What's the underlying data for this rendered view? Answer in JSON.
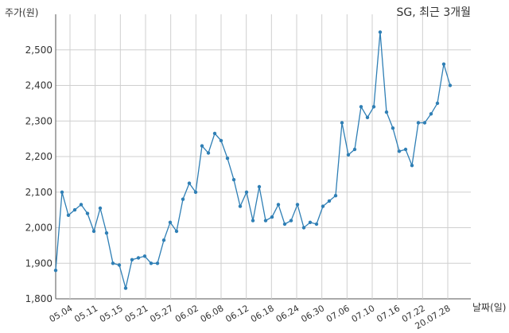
{
  "chart_data": {
    "type": "line",
    "title": "SG, 최근 3개월",
    "ylabel": "주가(원)",
    "xlabel": "날짜(일)",
    "ylim": [
      1800,
      2600
    ],
    "yticks": [
      1800,
      1900,
      2000,
      2100,
      2200,
      2300,
      2400,
      2500
    ],
    "ytick_labels": [
      "1,800",
      "1,900",
      "2,000",
      "2,100",
      "2,200",
      "2,300",
      "2,400",
      "2,500"
    ],
    "xtick_labels": [
      "05.04",
      "05.11",
      "05.15",
      "05.21",
      "05.27",
      "06.02",
      "06.08",
      "06.12",
      "06.18",
      "06.24",
      "06.30",
      "07.06",
      "07.10",
      "07.16",
      "07.22",
      "20.07.28"
    ],
    "grid": true,
    "line_color": "#2f7fb5",
    "series": [
      {
        "values": [
          1880,
          2100,
          2035,
          2050,
          2065,
          2040,
          1990,
          2055,
          1985,
          1900,
          1895,
          1830,
          1910,
          1915,
          1920,
          1900,
          1900,
          1965,
          2015,
          1990,
          2080,
          2125,
          2100,
          2230,
          2210,
          2265,
          2245,
          2195,
          2135,
          2060,
          2100,
          2020,
          2115,
          2020,
          2030,
          2065,
          2010,
          2020,
          2065,
          2000,
          2015,
          2010,
          2060,
          2075,
          2090,
          2295,
          2205,
          2220,
          2340,
          2310,
          2340,
          2550,
          2325,
          2280,
          2215,
          2220,
          2175,
          2295,
          2295,
          2320,
          2350,
          2460,
          2400
        ]
      }
    ]
  }
}
